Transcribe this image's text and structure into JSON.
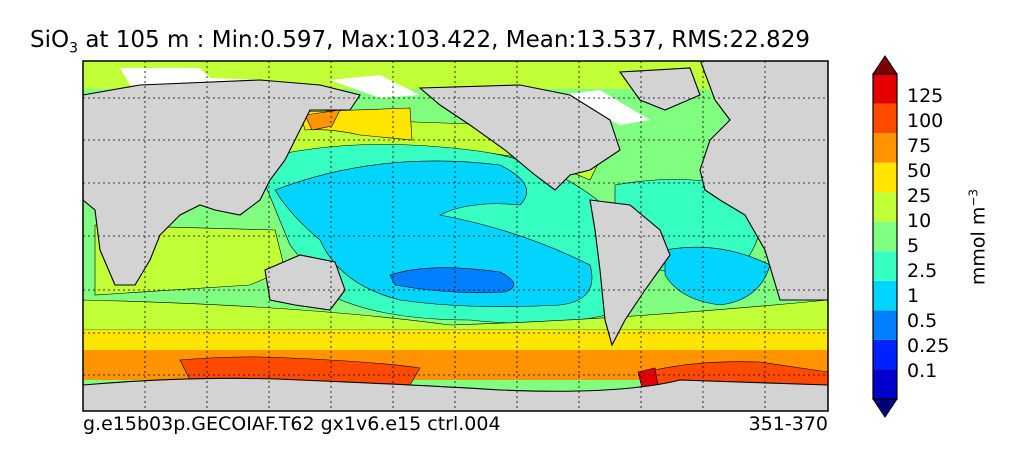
{
  "title": {
    "variable": "SiO",
    "variable_sub": "3",
    "rest": " at 105 m : Min:0.597, Max:103.422, Mean:13.537, RMS:22.829"
  },
  "footer": {
    "case": "g.e15b03p.GECOIAF.T62 gx1v6.e15 ctrl.004",
    "years": "351-370"
  },
  "colorbar": {
    "unit_base": "mmol m",
    "unit_exp": "−3",
    "ticks": [
      "125",
      "100",
      "75",
      "50",
      "25",
      "10",
      "5",
      "2.5",
      "1",
      "0.5",
      "0.25",
      "0.1"
    ],
    "colors": [
      "#00007f",
      "#0000cd",
      "#0022ff",
      "#0080ff",
      "#00d4ff",
      "#36ffc1",
      "#80ff80",
      "#c1ff36",
      "#ffe500",
      "#ff9400",
      "#ff4a00",
      "#e50000",
      "#7f0000"
    ]
  },
  "map": {
    "land_color": "#d3d3d3",
    "ice_color": "#ffffff",
    "grid": true
  }
}
